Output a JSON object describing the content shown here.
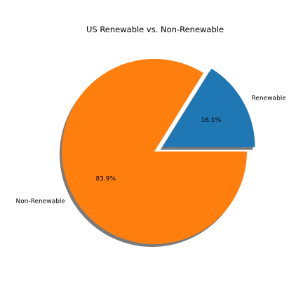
{
  "chart_data": {
    "type": "pie",
    "title": "US Renewable vs. Non-Renewable",
    "categories": [
      "Renewable",
      "Non-Renewable"
    ],
    "values": [
      16.1,
      83.9
    ],
    "percent_labels": [
      "16.1%",
      "83.9%"
    ],
    "colors": [
      "#1f77b4",
      "#ff7f0e"
    ],
    "explode": [
      0.1,
      0
    ],
    "shadow": true,
    "start_angle_deg": 0,
    "legend": "none"
  }
}
